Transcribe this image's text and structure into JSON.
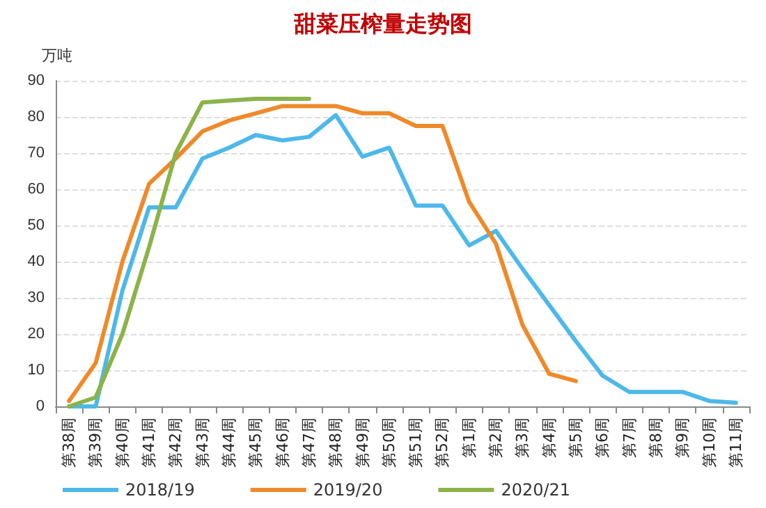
{
  "chart_data": {
    "type": "line",
    "title": "甜菜压榨量走势图",
    "ylabel": "万吨",
    "categories": [
      "第38周",
      "第39周",
      "第40周",
      "第41周",
      "第42周",
      "第43周",
      "第44周",
      "第45周",
      "第46周",
      "第47周",
      "第48周",
      "第49周",
      "第50周",
      "第51周",
      "第52周",
      "第1周",
      "第2周",
      "第3周",
      "第4周",
      "第5周",
      "第6周",
      "第7周",
      "第8周",
      "第9周",
      "第10周",
      "第11周"
    ],
    "series": [
      {
        "name": "2018/19",
        "color": "#4db8ea",
        "values": [
          0,
          0,
          32,
          55,
          55,
          68.5,
          71.5,
          75,
          73.5,
          74.5,
          80.5,
          69,
          71.5,
          55.5,
          55.5,
          44.5,
          48.5,
          38,
          28,
          18,
          8.5,
          4,
          4,
          4,
          1.5,
          1
        ]
      },
      {
        "name": "2019/20",
        "color": "#ee8a2a",
        "values": [
          1.5,
          12,
          40,
          61.5,
          68.5,
          76,
          79,
          81,
          83,
          83,
          83,
          81,
          81,
          77.5,
          77.5,
          56.5,
          45,
          22.5,
          9,
          7,
          null,
          null,
          null,
          null,
          null,
          null
        ]
      },
      {
        "name": "2020/21",
        "color": "#8bb34a",
        "values": [
          0,
          2.5,
          20,
          44,
          70,
          84,
          84.5,
          85,
          85,
          85,
          null,
          null,
          null,
          null,
          null,
          null,
          null,
          null,
          null,
          null,
          null,
          null,
          null,
          null,
          null,
          null
        ]
      }
    ],
    "ylim": [
      0,
      90
    ],
    "yticks": [
      0,
      10,
      20,
      30,
      40,
      50,
      60,
      70,
      80,
      90
    ],
    "grid": "y",
    "legend": "bottom left",
    "marker": "none",
    "line_style": "solid"
  }
}
